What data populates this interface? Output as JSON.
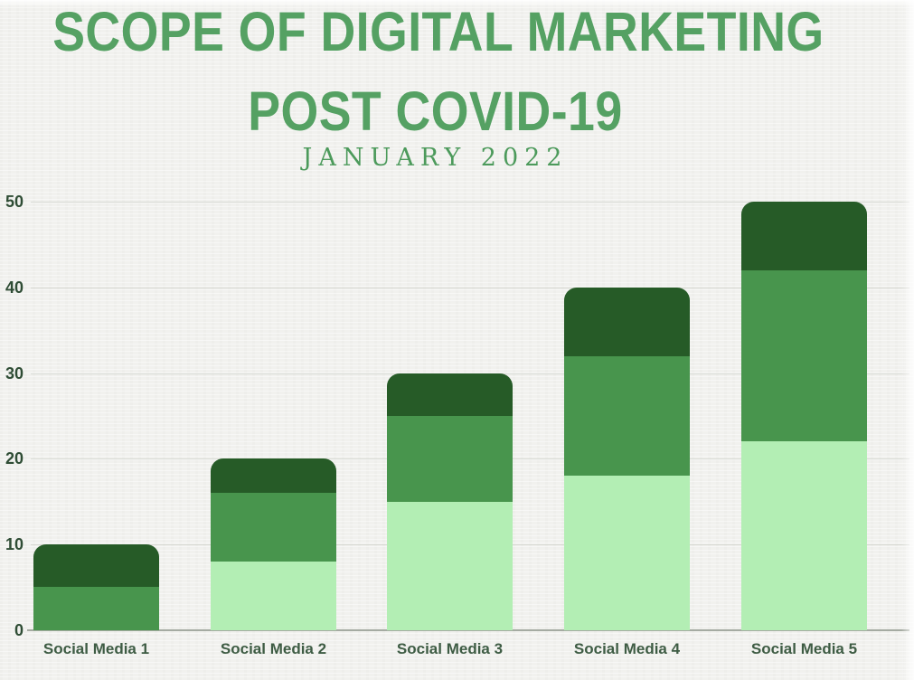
{
  "title": {
    "line1": "SCOPE OF DIGITAL MARKETING",
    "line2": "POST COVID-19",
    "subtitle": "JANUARY 2022"
  },
  "colors": {
    "background": "#f1f1ee",
    "title-green": "#55a163",
    "subtitle-green": "#4c9a5b",
    "axis-label": "#2e4c34",
    "category-label": "#3e5c44",
    "gridline": "#d7d9d3",
    "baseline": "#a5aba2"
  },
  "chart_data": {
    "type": "bar",
    "stacked": true,
    "title": "SCOPE OF DIGITAL MARKETING POST COVID-19",
    "subtitle": "JANUARY 2022",
    "categories": [
      "Social Media 1",
      "Social Media 2",
      "Social Media 3",
      "Social Media 4",
      "Social Media 5"
    ],
    "series": [
      {
        "name": "light-green-segment",
        "color": "#b3eeb4",
        "values": [
          0,
          8,
          15,
          18,
          22
        ]
      },
      {
        "name": "medium-green-segment",
        "color": "#48954d",
        "values": [
          5,
          8,
          10,
          14,
          20
        ]
      },
      {
        "name": "dark-green-segment",
        "color": "#265b27",
        "values": [
          5,
          4,
          5,
          8,
          8
        ]
      }
    ],
    "totals": [
      10,
      20,
      30,
      40,
      50
    ],
    "xlabel": "",
    "ylabel": "",
    "ylim": [
      0,
      50
    ],
    "yticks": [
      0,
      10,
      20,
      30,
      40,
      50
    ],
    "ytick_labels": [
      "0",
      "10",
      "20",
      "30",
      "40",
      "50"
    ],
    "grid": true,
    "legend": "none"
  }
}
